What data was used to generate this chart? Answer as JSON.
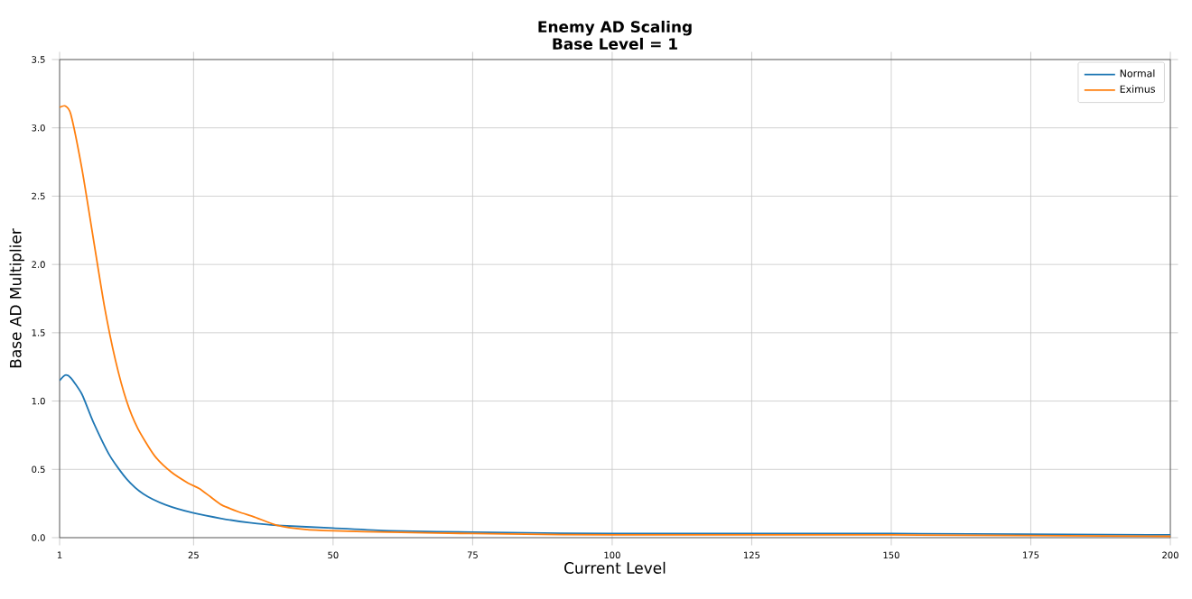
{
  "chart_data": {
    "type": "line",
    "title": "Enemy AD Scaling",
    "subtitle": "Base Level = 1",
    "xlabel": "Current Level",
    "ylabel": "Base AD Multiplier",
    "xlim": [
      1,
      200
    ],
    "ylim": [
      0,
      3.5
    ],
    "xticks": [
      1,
      25,
      50,
      75,
      100,
      125,
      150,
      175,
      200
    ],
    "yticks": [
      {
        "value": 0,
        "label": "0.0"
      },
      0.5,
      {
        "value": 1,
        "label": "1.0"
      },
      1.5,
      {
        "value": 2,
        "label": "2.0"
      },
      2.5,
      {
        "value": 3,
        "label": "3.0"
      },
      3.5
    ],
    "grid": true,
    "legend": "top right",
    "marker": "none",
    "line_style": "solid",
    "series": [
      {
        "name": "Normal",
        "color": "#1f77b4",
        "x": [
          1,
          2,
          3,
          5,
          7,
          10,
          13,
          16,
          20,
          25,
          30,
          35,
          40,
          50,
          60,
          75,
          100,
          150,
          200
        ],
        "values": [
          1.15,
          1.19,
          1.17,
          1.05,
          0.85,
          0.6,
          0.43,
          0.32,
          0.24,
          0.18,
          0.14,
          0.11,
          0.09,
          0.07,
          0.05,
          0.04,
          0.03,
          0.03,
          0.02
        ]
      },
      {
        "name": "Eximus",
        "color": "#ff7f0e",
        "x": [
          1,
          2,
          3,
          5,
          7,
          9,
          11,
          13,
          15,
          18,
          21,
          24,
          26,
          28,
          30,
          33,
          36,
          40,
          45,
          50,
          60,
          75,
          100,
          150,
          200
        ],
        "values": [
          3.15,
          3.16,
          3.1,
          2.7,
          2.2,
          1.7,
          1.3,
          1.0,
          0.8,
          0.6,
          0.48,
          0.4,
          0.36,
          0.3,
          0.24,
          0.19,
          0.15,
          0.09,
          0.06,
          0.05,
          0.04,
          0.03,
          0.02,
          0.02,
          0.01
        ]
      }
    ]
  }
}
